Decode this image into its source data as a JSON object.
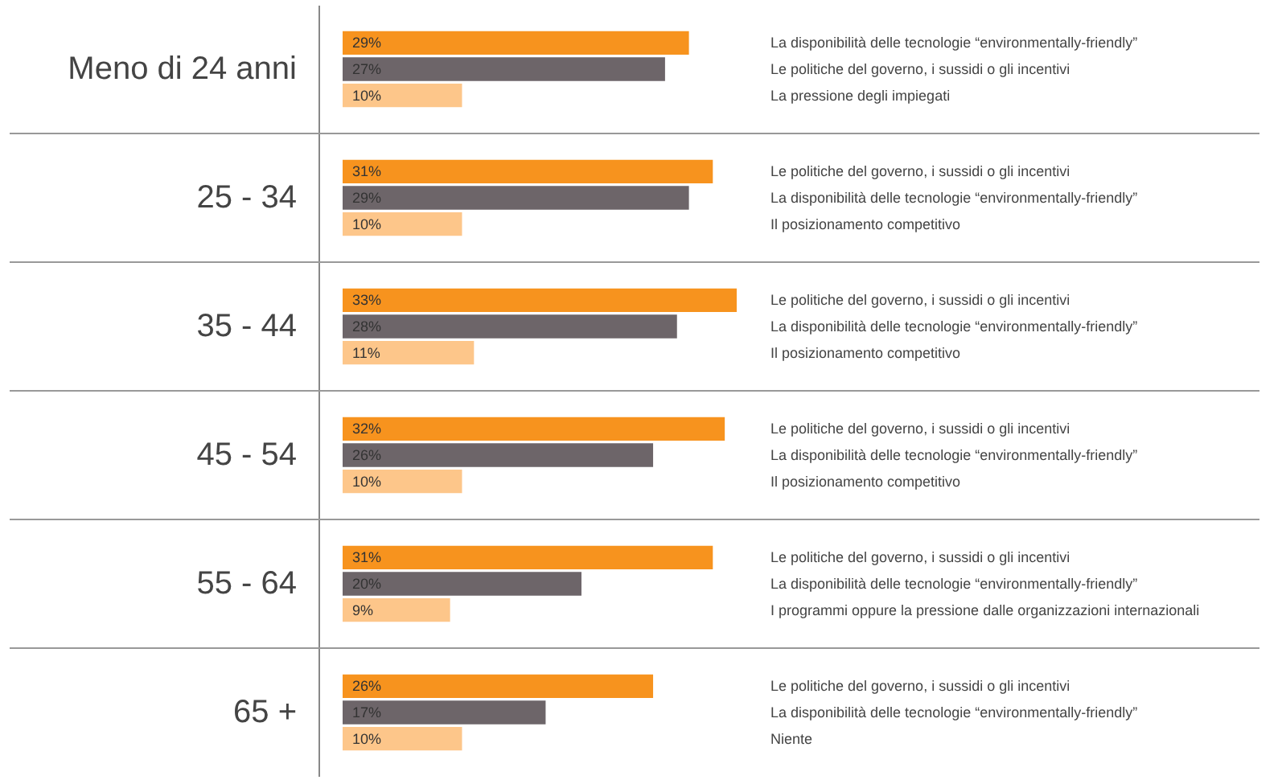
{
  "chart_data": {
    "type": "bar",
    "orientation": "horizontal",
    "grid": "y",
    "categories": [
      "Meno di 24 anni",
      "25 - 34",
      "35 - 44",
      "45 - 54",
      "55 - 64",
      "65 +"
    ],
    "series": [
      {
        "color": "#f7931e",
        "values": [
          29,
          31,
          33,
          32,
          31,
          26
        ],
        "value_labels": [
          "29%",
          "31%",
          "33%",
          "32%",
          "31%",
          "26%"
        ]
      },
      {
        "color": "#6d6569",
        "values": [
          27,
          29,
          28,
          26,
          20,
          17
        ],
        "value_labels": [
          "27%",
          "29%",
          "28%",
          "26%",
          "20%",
          "17%"
        ]
      },
      {
        "color": "#fdc68a",
        "values": [
          10,
          10,
          11,
          10,
          9,
          10
        ],
        "value_labels": [
          "10%",
          "10%",
          "11%",
          "10%",
          "9%",
          "10%"
        ]
      }
    ],
    "annotations": [
      "La disponibilità delle tecnologie “environmentally-friendly”",
      "Le politiche del governo, i sussidi o gli incentivi",
      "La pressione degli impiegati",
      "Le politiche del governo, i sussidi o gli incentivi",
      "La disponibilità delle tecnologie “environmentally-friendly”",
      "Il posizionamento competitivo",
      "Le politiche del governo, i sussidi o gli incentivi",
      "La disponibilità delle tecnologie “environmentally-friendly”",
      "Il posizionamento competitivo",
      "Le politiche del governo, i sussidi o gli incentivi",
      "La disponibilità delle tecnologie “environmentally-friendly”",
      "Il posizionamento competitivo",
      "Le politiche del governo, i sussidi o gli incentivi",
      "La disponibilità delle tecnologie “environmentally-friendly”",
      "I programmi oppure la pressione dalle organizzazioni internazionali",
      "Le politiche del governo, i sussidi o gli incentivi",
      "La disponibilità delle tecnologie “environmentally-friendly”",
      "Niente"
    ]
  }
}
